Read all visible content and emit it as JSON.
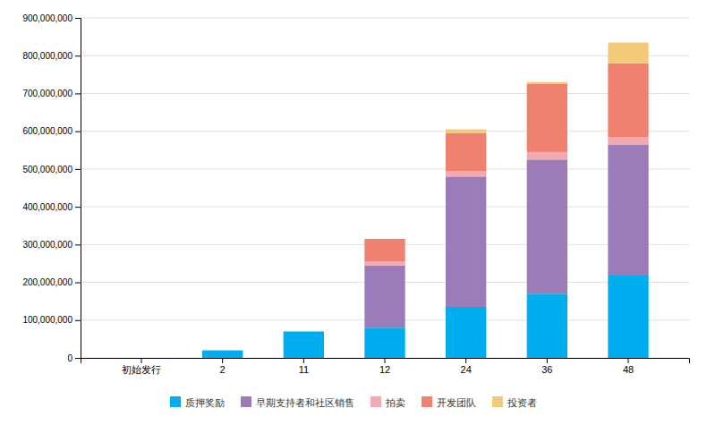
{
  "chart_data": {
    "type": "bar",
    "stacked": true,
    "categories": [
      "初始发行",
      "2",
      "11",
      "12",
      "24",
      "36",
      "48"
    ],
    "series": [
      {
        "name": "质押奖励",
        "color": "#00AEEF",
        "values": [
          0,
          20000000,
          70000000,
          80000000,
          135000000,
          170000000,
          220000000
        ]
      },
      {
        "name": "早期支持者和社区销售",
        "color": "#9B7CB8",
        "values": [
          0,
          0,
          0,
          165000000,
          345000000,
          355000000,
          345000000
        ]
      },
      {
        "name": "拍卖",
        "color": "#F4A8B0",
        "values": [
          0,
          0,
          0,
          10000000,
          15000000,
          20000000,
          20000000
        ]
      },
      {
        "name": "开发团队",
        "color": "#F08070",
        "values": [
          0,
          0,
          0,
          60000000,
          100000000,
          180000000,
          195000000
        ]
      },
      {
        "name": "投资者",
        "color": "#F5C97A",
        "values": [
          0,
          0,
          0,
          0,
          10000000,
          5000000,
          55000000
        ]
      }
    ],
    "ylim": [
      0,
      900000000
    ],
    "yticks": [
      0,
      {
        "value": 100000000,
        "label": "100,000,000"
      },
      {
        "value": 200000000,
        "label": "200,000,000"
      },
      {
        "value": 300000000,
        "label": "300,000,000"
      },
      {
        "value": 400000000,
        "label": "400,000,000"
      },
      {
        "value": 500000000,
        "label": "500,000,000"
      },
      {
        "value": 600000000,
        "label": "600,000,000"
      },
      {
        "value": 700000000,
        "label": "700,000,000"
      },
      {
        "value": 800000000,
        "label": "800,000,000"
      },
      {
        "value": 900000000,
        "label": "900,000,000"
      }
    ],
    "grid": true,
    "legend": "bottom"
  }
}
